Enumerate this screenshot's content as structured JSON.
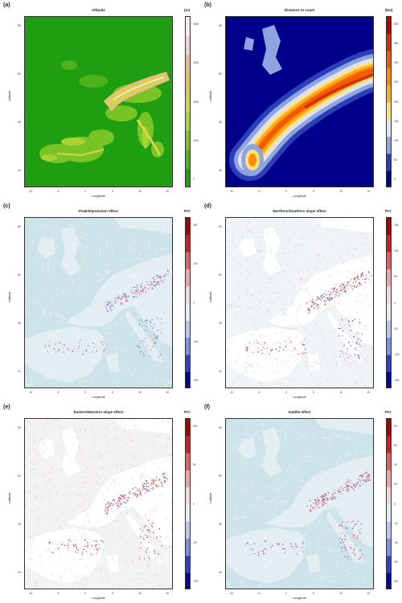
{
  "figure": {
    "x_axis_label": "Longitude",
    "y_axis_label": "Latitude",
    "x_ticks": [
      "-10",
      "-5",
      "0",
      "5",
      "10",
      "15"
    ],
    "y_ticks": [
      "55",
      "50",
      "45",
      "40"
    ]
  },
  "panels": [
    {
      "tag": "(a)",
      "title": "Altitude",
      "unit": "(m)",
      "kind": "altitude",
      "colorbar_ticks": [
        "4000",
        "3000",
        "2000",
        "1000",
        "0"
      ],
      "colors": [
        "#1f9e12",
        "#4cb31c",
        "#79c425",
        "#a8d433",
        "#d4d64a",
        "#e6c25c",
        "#ebb98a",
        "#f2d3d3",
        "#f7ecec"
      ]
    },
    {
      "tag": "(b)",
      "title": "Distance to coast",
      "unit": "(km)",
      "kind": "distance",
      "colorbar_ticks": [
        "400",
        "350",
        "300",
        "250",
        "200",
        "150",
        "100",
        "50",
        "0"
      ],
      "colors": [
        "#00008b",
        "#2a3fb8",
        "#8fa3e0",
        "#dde3f5",
        "#ffe27a",
        "#ffb020",
        "#ff8a00",
        "#f05a00",
        "#d93000",
        "#b80000"
      ]
    },
    {
      "tag": "(c)",
      "title": "Peak/depression effect",
      "unit": "PCI",
      "kind": "pci",
      "colorbar_ticks": [
        "200",
        "100",
        "0",
        "-100",
        "-200"
      ],
      "colors": [
        "#0000aa",
        "#2d3fd0",
        "#7a8fe6",
        "#b9c7ef",
        "#e6eef5",
        "#f4d9d9",
        "#f3a3a3",
        "#ea5b5b",
        "#d81b1b",
        "#a80000"
      ],
      "background": "#cde3ea",
      "hotspot": "#8c72c4"
    },
    {
      "tag": "(d)",
      "title": "Northern/Southern slope effect",
      "unit": "PCI",
      "kind": "pci",
      "colorbar_ticks": [
        "150",
        "100",
        "50",
        "0",
        "-50",
        "-100",
        "-150"
      ],
      "colors": [
        "#0000aa",
        "#2d3fd0",
        "#7a8fe6",
        "#b9c7ef",
        "#e6eef5",
        "#f4d9d9",
        "#f3a3a3",
        "#ea5b5b",
        "#d81b1b",
        "#a80000"
      ],
      "background": "#eef4f7",
      "hotspot": "#e84848"
    },
    {
      "tag": "(e)",
      "title": "Eastern/Western slope effect",
      "unit": "PCI",
      "kind": "pci",
      "colorbar_ticks": [
        "100",
        "50",
        "0",
        "-50",
        "-100"
      ],
      "colors": [
        "#0000aa",
        "#2d3fd0",
        "#7a8fe6",
        "#b9c7ef",
        "#e6eef5",
        "#f4d9d9",
        "#f3a3a3",
        "#ea5b5b",
        "#d81b1b",
        "#a80000"
      ],
      "background": "#f3f3f3",
      "hotspot": "#e14444"
    },
    {
      "tag": "(f)",
      "title": "Saddle effect",
      "unit": "PCI",
      "kind": "pci",
      "colorbar_ticks": [
        "80",
        "60",
        "40",
        "20",
        "0",
        "-20",
        "-40",
        "-60",
        "-80"
      ],
      "colors": [
        "#0000aa",
        "#2d3fd0",
        "#7a8fe6",
        "#b9c7ef",
        "#e6eef5",
        "#f4d9d9",
        "#f3a3a3",
        "#ea5b5b",
        "#d81b1b",
        "#a80000"
      ],
      "background": "#cde3ea",
      "hotspot": "#b0487a"
    }
  ]
}
